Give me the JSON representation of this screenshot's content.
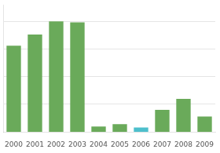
{
  "chart_data": {
    "type": "bar",
    "categories": [
      "2000",
      "2001",
      "2002",
      "2003",
      "2004",
      "2005",
      "2006",
      "2007",
      "2008",
      "2009"
    ],
    "values": [
      78,
      88,
      100,
      99,
      5,
      7,
      4,
      20,
      30,
      14
    ],
    "colors": [
      "#6aaa5a",
      "#6aaa5a",
      "#6aaa5a",
      "#6aaa5a",
      "#6aaa5a",
      "#6aaa5a",
      "#4dbfcc",
      "#6aaa5a",
      "#6aaa5a",
      "#6aaa5a"
    ],
    "ylim": [
      0,
      115
    ],
    "yticks": [
      25,
      50,
      75,
      100
    ],
    "grid": true,
    "tick_labels": "x"
  }
}
